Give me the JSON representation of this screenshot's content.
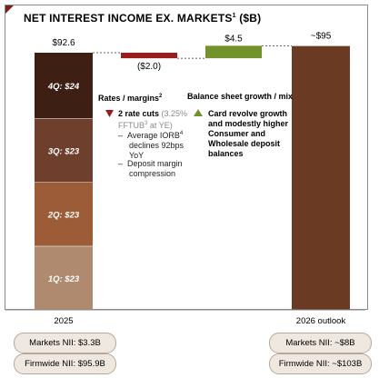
{
  "title": "NET INTEREST INCOME EX. MARKETS",
  "title_superscript": "1",
  "title_unit": "($B)",
  "chart_data": {
    "type": "waterfall",
    "ylim": [
      0,
      100
    ],
    "bars": [
      {
        "category": "2025",
        "total": 92.6,
        "total_label": "$92.6",
        "segments": [
          {
            "name": "1Q",
            "value": 23,
            "label": "1Q: $23",
            "color": "#b08a6e"
          },
          {
            "name": "2Q",
            "value": 23,
            "label": "2Q: $23",
            "color": "#9c5c38"
          },
          {
            "name": "3Q",
            "value": 23,
            "label": "3Q: $23",
            "color": "#6e3f2c"
          },
          {
            "name": "4Q",
            "value": 24,
            "label": "4Q: $24",
            "color": "#3d1f14"
          }
        ]
      },
      {
        "category": "Rates / margins",
        "delta": -2.0,
        "label": "($2.0)",
        "color": "#9a1c1c"
      },
      {
        "category": "Balance sheet growth / mix",
        "delta": 4.5,
        "label": "$4.5",
        "color": "#72922a"
      },
      {
        "category": "2026 outlook",
        "total": 95,
        "total_label": "~$95",
        "color": "#6b3a22"
      }
    ]
  },
  "rates": {
    "heading": "Rates / margins",
    "heading_sup": "2",
    "bullet_color": "#9a1c1c",
    "main_bold": "2 rate cuts",
    "main_muted_1": " (3.25%",
    "main_muted_2": "FFTUB",
    "main_muted_sup": "3",
    "main_muted_3": " at YE)",
    "sub1_a": "Average IORB",
    "sub1_sup": "4",
    "sub1_b": "declines 92bps",
    "sub1_c": "YoY",
    "sub2_a": "Deposit margin",
    "sub2_b": "compression"
  },
  "balance": {
    "heading": "Balance sheet growth / mix",
    "bullet_color": "#72922a",
    "line1": "Card revolve growth",
    "line2": "and modestly higher",
    "line3": "Consumer and",
    "line4": "Wholesale deposit",
    "line5": "balances"
  },
  "pills": {
    "markets_2025": "Markets NII: $3.3B",
    "firmwide_2025": "Firmwide NII: $95.9B",
    "markets_2026": "Markets NII: ~$8B",
    "firmwide_2026": "Firmwide NII: ~$103B"
  }
}
